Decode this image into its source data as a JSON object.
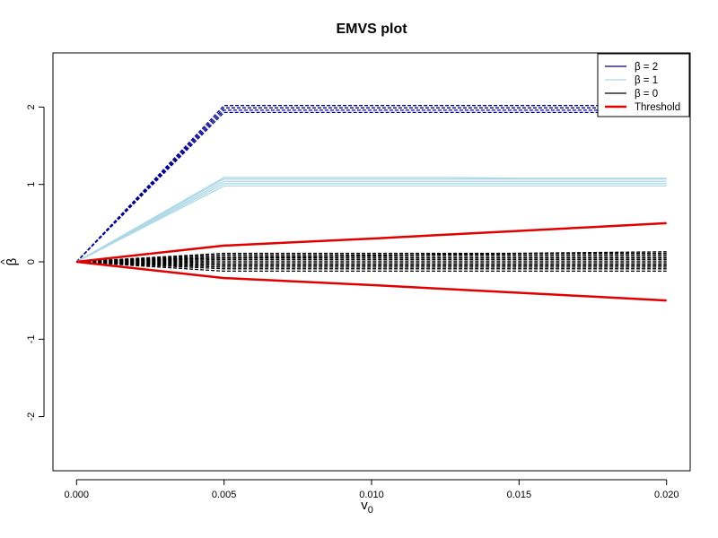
{
  "chart_data": {
    "type": "line",
    "title": "EMVS plot",
    "xlabel": "v",
    "xlabel_subscript": "0",
    "ylabel": "β",
    "ylabel_accent": "^",
    "xlim": [
      -0.0008,
      0.0208
    ],
    "ylim": [
      -2.7,
      2.7
    ],
    "x_ticks": [
      0.0,
      0.005,
      0.01,
      0.015,
      0.02
    ],
    "x_tick_labels": [
      "0.000",
      "0.005",
      "0.010",
      "0.015",
      "0.020"
    ],
    "y_ticks": [
      -2,
      -1,
      0,
      1,
      2
    ],
    "y_tick_labels": [
      "-2",
      "-1",
      "0",
      "1",
      "2"
    ],
    "x": [
      0.0,
      0.005,
      0.0075,
      0.01,
      0.0125,
      0.015,
      0.0175,
      0.02
    ],
    "legend": {
      "position": "top-right",
      "entries": [
        {
          "label": "β = 2",
          "color": "#00008B"
        },
        {
          "label": "β = 1",
          "color": "#ADD8E6"
        },
        {
          "label": "β = 0",
          "color": "#000000"
        },
        {
          "label": "Threshold",
          "color": "#E00000"
        }
      ]
    },
    "series": [
      {
        "group": "β = 2",
        "color": "#00008B",
        "dashed": true,
        "values": [
          0,
          1.93,
          1.93,
          1.93,
          1.93,
          1.93,
          1.93,
          1.93
        ]
      },
      {
        "group": "β = 2",
        "color": "#00008B",
        "dashed": true,
        "values": [
          0,
          1.96,
          1.96,
          1.96,
          1.96,
          1.96,
          1.96,
          1.96
        ]
      },
      {
        "group": "β = 2",
        "color": "#00008B",
        "dashed": true,
        "values": [
          0,
          1.99,
          1.99,
          1.99,
          1.99,
          1.99,
          1.99,
          1.99
        ]
      },
      {
        "group": "β = 2",
        "color": "#00008B",
        "dashed": true,
        "values": [
          0,
          2.02,
          2.02,
          2.02,
          2.02,
          2.02,
          2.02,
          2.02
        ]
      },
      {
        "group": "β = 1",
        "color": "#ADD8E6",
        "dashed": false,
        "values": [
          0,
          0.98,
          0.98,
          0.98,
          0.98,
          0.98,
          0.98,
          0.98
        ]
      },
      {
        "group": "β = 1",
        "color": "#ADD8E6",
        "dashed": false,
        "values": [
          0,
          1.01,
          1.01,
          1.01,
          1.01,
          1.01,
          1.01,
          1.01
        ]
      },
      {
        "group": "β = 1",
        "color": "#ADD8E6",
        "dashed": false,
        "values": [
          0,
          1.04,
          1.04,
          1.04,
          1.04,
          1.04,
          1.04,
          1.04
        ]
      },
      {
        "group": "β = 1",
        "color": "#ADD8E6",
        "dashed": false,
        "values": [
          0,
          1.07,
          1.07,
          1.07,
          1.07,
          1.07,
          1.07,
          1.07
        ]
      },
      {
        "group": "β = 1",
        "color": "#ADD8E6",
        "dashed": false,
        "values": [
          0,
          1.09,
          1.09,
          1.09,
          1.09,
          1.08,
          1.08,
          1.08
        ]
      },
      {
        "group": "β = 0",
        "color": "#000000",
        "dashed": true,
        "values": [
          0,
          -0.12,
          -0.12,
          -0.12,
          -0.12,
          -0.12,
          -0.12,
          -0.12
        ]
      },
      {
        "group": "β = 0",
        "color": "#000000",
        "dashed": true,
        "values": [
          0,
          -0.09,
          -0.09,
          -0.09,
          -0.09,
          -0.09,
          -0.09,
          -0.09
        ]
      },
      {
        "group": "β = 0",
        "color": "#000000",
        "dashed": true,
        "values": [
          0,
          -0.07,
          -0.07,
          -0.07,
          -0.07,
          -0.07,
          -0.07,
          -0.07
        ]
      },
      {
        "group": "β = 0",
        "color": "#000000",
        "dashed": true,
        "values": [
          0,
          -0.05,
          -0.05,
          -0.05,
          -0.05,
          -0.05,
          -0.05,
          -0.05
        ]
      },
      {
        "group": "β = 0",
        "color": "#000000",
        "dashed": true,
        "values": [
          0,
          -0.03,
          -0.03,
          -0.03,
          -0.03,
          -0.03,
          -0.03,
          -0.03
        ]
      },
      {
        "group": "β = 0",
        "color": "#000000",
        "dashed": true,
        "values": [
          0,
          -0.01,
          -0.01,
          -0.01,
          -0.01,
          -0.01,
          -0.01,
          -0.01
        ]
      },
      {
        "group": "β = 0",
        "color": "#000000",
        "dashed": true,
        "values": [
          0,
          0.01,
          0.01,
          0.01,
          0.01,
          0.01,
          0.01,
          0.01
        ]
      },
      {
        "group": "β = 0",
        "color": "#000000",
        "dashed": true,
        "values": [
          0,
          0.03,
          0.03,
          0.03,
          0.03,
          0.03,
          0.03,
          0.03
        ]
      },
      {
        "group": "β = 0",
        "color": "#000000",
        "dashed": true,
        "values": [
          0,
          0.05,
          0.05,
          0.05,
          0.05,
          0.05,
          0.05,
          0.05
        ]
      },
      {
        "group": "β = 0",
        "color": "#000000",
        "dashed": true,
        "values": [
          0,
          0.07,
          0.07,
          0.07,
          0.07,
          0.07,
          0.07,
          0.07
        ]
      },
      {
        "group": "β = 0",
        "color": "#000000",
        "dashed": true,
        "values": [
          0,
          0.09,
          0.09,
          0.09,
          0.09,
          0.09,
          0.09,
          0.09
        ]
      },
      {
        "group": "β = 0",
        "color": "#000000",
        "dashed": true,
        "values": [
          0,
          0.11,
          0.11,
          0.11,
          0.11,
          0.11,
          0.11,
          0.11
        ]
      },
      {
        "group": "β = 0",
        "color": "#000000",
        "dashed": true,
        "values": [
          0,
          0.05,
          0.06,
          0.08,
          0.1,
          0.11,
          0.12,
          0.13
        ]
      },
      {
        "group": "Threshold",
        "color": "#E00000",
        "dashed": false,
        "width": 2.5,
        "values": [
          0,
          0.21,
          0.255,
          0.3,
          0.35,
          0.4,
          0.45,
          0.5
        ]
      },
      {
        "group": "Threshold",
        "color": "#E00000",
        "dashed": false,
        "width": 2.5,
        "values": [
          0,
          -0.21,
          -0.255,
          -0.3,
          -0.35,
          -0.4,
          -0.45,
          -0.5
        ]
      }
    ]
  }
}
